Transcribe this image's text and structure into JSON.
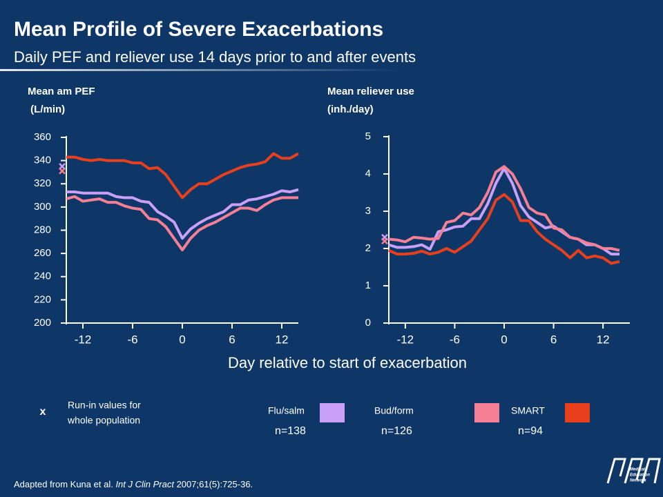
{
  "title": "Mean Profile of Severe Exacerbations",
  "subtitle": "Daily PEF and reliever use 14 days prior to and after events",
  "xlabel": "Day relative to start of exacerbation",
  "run_in_note": {
    "symbol": "x",
    "lines": [
      "Run-in values for",
      "whole population"
    ]
  },
  "source": {
    "before": "Adapted from Kuna et al. ",
    "journal": "Int J Clin Pract",
    "after": " 2007;61(5):725-36."
  },
  "logo": {
    "lines": [
      "Medical",
      "Education",
      "Network"
    ]
  },
  "chart_data": [
    {
      "type": "line",
      "ylabel": [
        "Mean am PEF",
        " (L/min)"
      ],
      "x": [
        -14,
        -13,
        -12,
        -11,
        -10,
        -9,
        -8,
        -7,
        -6,
        -5,
        -4,
        -3,
        -2,
        -1,
        0,
        1,
        2,
        3,
        4,
        5,
        6,
        7,
        8,
        9,
        10,
        11,
        12,
        13,
        14
      ],
      "xlim": [
        -14,
        14
      ],
      "xticks": [
        -12,
        -6,
        0,
        6,
        12
      ],
      "ylim": [
        200,
        360
      ],
      "yticks": [
        200,
        220,
        240,
        260,
        280,
        300,
        320,
        340,
        360
      ],
      "series": [
        {
          "name": "Flu/salm",
          "n_label": "n=138",
          "color": "#c9a0f5",
          "run_in": 335,
          "values": [
            313,
            313,
            312,
            312,
            312,
            312,
            309,
            308,
            308,
            305,
            304,
            296,
            292,
            287,
            273,
            281,
            286,
            290,
            293,
            296,
            302,
            302,
            306,
            307,
            309,
            311,
            314,
            313,
            315
          ]
        },
        {
          "name": "Bud/form",
          "n_label": "n=126",
          "color": "#f57f95",
          "run_in": 331,
          "values": [
            307,
            309,
            305,
            306,
            307,
            304,
            304,
            301,
            299,
            298,
            290,
            289,
            283,
            273,
            263,
            273,
            280,
            284,
            287,
            291,
            295,
            299,
            299,
            297,
            302,
            306,
            308,
            308,
            308
          ]
        },
        {
          "name": "SMART",
          "n_label": "n=94",
          "color": "#e8401c",
          "run_in": null,
          "values": [
            343,
            343,
            341,
            340,
            341,
            340,
            340,
            340,
            338,
            338,
            333,
            334,
            328,
            318,
            308,
            315,
            320,
            320,
            324,
            328,
            331,
            334,
            336,
            337,
            339,
            346,
            342,
            342,
            346
          ]
        }
      ]
    },
    {
      "type": "line",
      "ylabel": [
        "Mean reliever use",
        "(inh./day)"
      ],
      "x": [
        -14,
        -13,
        -12,
        -11,
        -10,
        -9,
        -8,
        -7,
        -6,
        -5,
        -4,
        -3,
        -2,
        -1,
        0,
        1,
        2,
        3,
        4,
        5,
        6,
        7,
        8,
        9,
        10,
        11,
        12,
        13,
        14
      ],
      "xlim": [
        -14,
        14
      ],
      "xticks": [
        -12,
        -6,
        0,
        6,
        12
      ],
      "ylim": [
        0,
        5
      ],
      "yticks": [
        0,
        1,
        2,
        3,
        4,
        5
      ],
      "series": [
        {
          "color": "#c9a0f5",
          "run_in": 2.3,
          "values": [
            2.1,
            2.03,
            2.03,
            2.05,
            2.1,
            1.98,
            2.45,
            2.5,
            2.58,
            2.6,
            2.8,
            2.8,
            3.2,
            3.75,
            4.15,
            3.75,
            3.15,
            2.85,
            2.7,
            2.55,
            2.6,
            2.45,
            2.3,
            2.25,
            2.1,
            2.1,
            2.0,
            1.85,
            1.85
          ]
        },
        {
          "color": "#f57f95",
          "run_in": 2.2,
          "values": [
            2.25,
            2.23,
            2.18,
            2.3,
            2.28,
            2.25,
            2.27,
            2.7,
            2.75,
            2.95,
            2.9,
            3.1,
            3.5,
            4.05,
            4.2,
            4.0,
            3.6,
            3.1,
            2.95,
            2.9,
            2.55,
            2.5,
            2.3,
            2.25,
            2.15,
            2.1,
            2.0,
            2.0,
            1.95
          ]
        },
        {
          "color": "#e8401c",
          "run_in": null,
          "values": [
            1.95,
            1.85,
            1.85,
            1.87,
            1.93,
            1.85,
            1.9,
            2.0,
            1.9,
            2.05,
            2.2,
            2.5,
            2.8,
            3.3,
            3.45,
            3.25,
            2.75,
            2.75,
            2.45,
            2.25,
            2.1,
            1.95,
            1.75,
            1.95,
            1.75,
            1.8,
            1.75,
            1.6,
            1.65
          ]
        }
      ]
    }
  ]
}
